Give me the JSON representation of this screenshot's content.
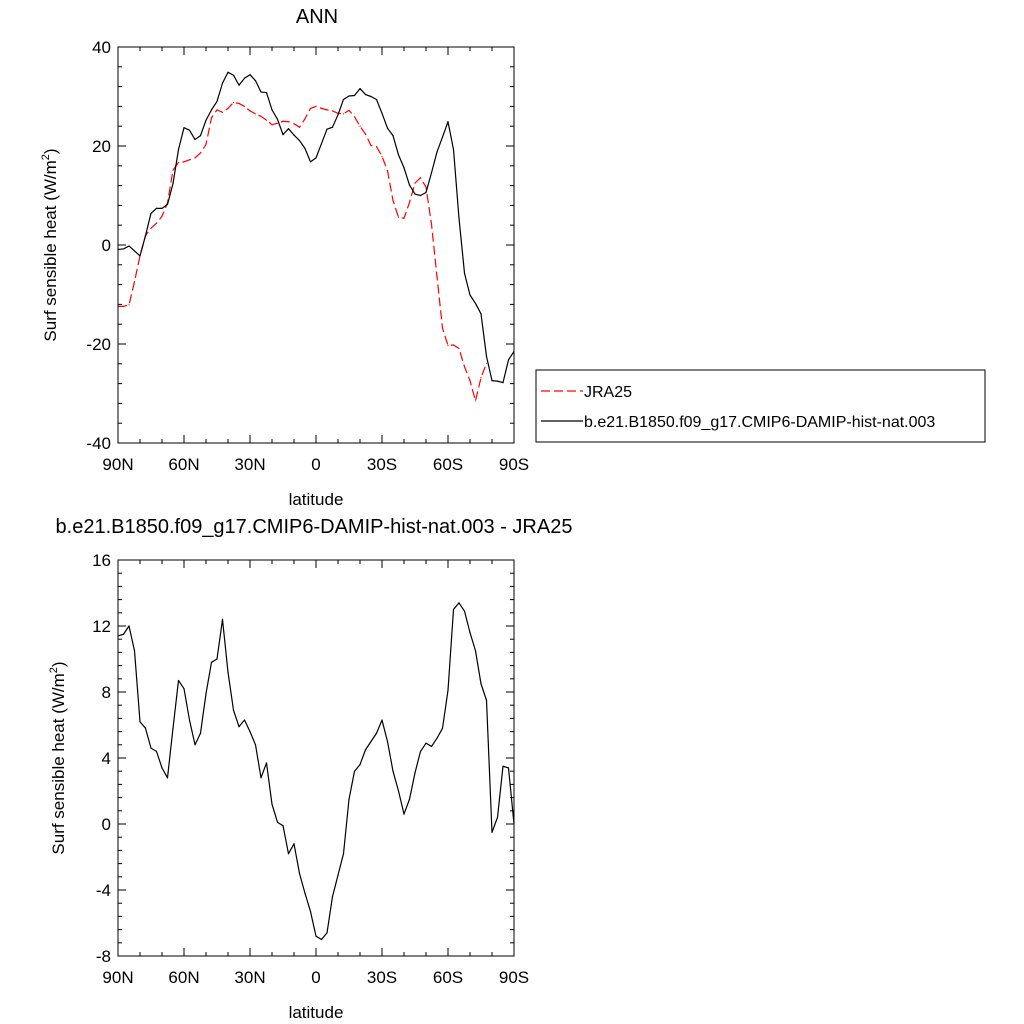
{
  "chart_data": [
    {
      "type": "line",
      "title": "ANN",
      "xlabel": "latitude",
      "ylabel": "Surf sensible heat (W/m",
      "ylabel_sup": "2",
      "ylabel_close": ")",
      "xlim": [
        90,
        -90
      ],
      "ylim": [
        -40,
        40
      ],
      "xticks": [
        {
          "value": 90,
          "label": "90N"
        },
        {
          "value": 60,
          "label": "60N"
        },
        {
          "value": 30,
          "label": "30N"
        },
        {
          "value": 0,
          "label": "0"
        },
        {
          "value": -30,
          "label": "30S"
        },
        {
          "value": -60,
          "label": "60S"
        },
        {
          "value": -90,
          "label": "90S"
        }
      ],
      "yticks": [
        40,
        20,
        0,
        -20,
        -40
      ],
      "legend_position": "right",
      "series": [
        {
          "name": "JRA25",
          "color": "#ff0000",
          "dash": "dashed",
          "points": [
            [
              90,
              -12.4
            ],
            [
              87.5,
              -12.4
            ],
            [
              85,
              -12.1
            ],
            [
              82.5,
              -7.4
            ],
            [
              80,
              -2.2
            ],
            [
              77.5,
              1.9
            ],
            [
              75,
              3.4
            ],
            [
              72.5,
              4.4
            ],
            [
              70,
              5.8
            ],
            [
              67.5,
              8.5
            ],
            [
              65,
              15.1
            ],
            [
              62.5,
              16.7
            ],
            [
              60,
              16.8
            ],
            [
              57.5,
              17.2
            ],
            [
              55,
              17.6
            ],
            [
              52.5,
              18.6
            ],
            [
              50,
              20.3
            ],
            [
              47.5,
              25.7
            ],
            [
              45,
              27.3
            ],
            [
              42.5,
              26.8
            ],
            [
              40,
              27.6
            ],
            [
              37.5,
              28.8
            ],
            [
              35,
              28.6
            ],
            [
              32.5,
              28.0
            ],
            [
              30,
              27.1
            ],
            [
              27.5,
              26.5
            ],
            [
              25,
              26.0
            ],
            [
              22.5,
              25.2
            ],
            [
              20,
              24.3
            ],
            [
              17.5,
              24.6
            ],
            [
              15,
              25.0
            ],
            [
              12.5,
              24.9
            ],
            [
              10,
              24.5
            ],
            [
              7.5,
              23.8
            ],
            [
              5,
              25.5
            ],
            [
              2.5,
              27.6
            ],
            [
              0,
              28.0
            ],
            [
              -2.5,
              27.6
            ],
            [
              -5,
              27.3
            ],
            [
              -7.5,
              27.1
            ],
            [
              -10,
              26.6
            ],
            [
              -12.5,
              26.5
            ],
            [
              -15,
              27.2
            ],
            [
              -17.5,
              25.9
            ],
            [
              -20,
              24.0
            ],
            [
              -22.5,
              22.4
            ],
            [
              -25,
              20.1
            ],
            [
              -27.5,
              19.9
            ],
            [
              -30,
              17.9
            ],
            [
              -32.5,
              15.0
            ],
            [
              -35,
              9.0
            ],
            [
              -37.5,
              5.6
            ],
            [
              -40,
              5.4
            ],
            [
              -42.5,
              8.6
            ],
            [
              -45,
              12.5
            ],
            [
              -47.5,
              13.6
            ],
            [
              -50,
              11.7
            ],
            [
              -52.5,
              4.2
            ],
            [
              -55,
              -6.4
            ],
            [
              -57.5,
              -16.8
            ],
            [
              -60,
              -20.3
            ],
            [
              -62.5,
              -20.2
            ],
            [
              -65,
              -20.9
            ],
            [
              -67.5,
              -24.6
            ],
            [
              -70,
              -27.4
            ],
            [
              -72.5,
              -31.5
            ],
            [
              -75,
              -26.8
            ],
            [
              -77.5,
              -23.9
            ]
          ]
        },
        {
          "name": "b.e21.B1850.f09_g17.CMIP6-DAMIP-hist-nat.003",
          "color": "#000000",
          "dash": "solid",
          "points": [
            [
              90,
              -0.9
            ],
            [
              87.5,
              -0.8
            ],
            [
              85,
              -0.2
            ],
            [
              82.5,
              -1.2
            ],
            [
              80,
              -2.2
            ],
            [
              77.5,
              1.9
            ],
            [
              75,
              6.4
            ],
            [
              72.5,
              7.4
            ],
            [
              70,
              7.4
            ],
            [
              67.5,
              8.2
            ],
            [
              65,
              12.4
            ],
            [
              62.5,
              19.3
            ],
            [
              60,
              23.7
            ],
            [
              57.5,
              23.2
            ],
            [
              55,
              21.3
            ],
            [
              52.5,
              22.1
            ],
            [
              50,
              25.2
            ],
            [
              47.5,
              27.3
            ],
            [
              45,
              29.0
            ],
            [
              42.5,
              32.7
            ],
            [
              40,
              34.9
            ],
            [
              37.5,
              34.3
            ],
            [
              35,
              32.3
            ],
            [
              32.5,
              33.7
            ],
            [
              30,
              34.4
            ],
            [
              27.5,
              33.2
            ],
            [
              25,
              30.9
            ],
            [
              22.5,
              30.8
            ],
            [
              20,
              27.3
            ],
            [
              17.5,
              25.4
            ],
            [
              15,
              22.3
            ],
            [
              12.5,
              23.5
            ],
            [
              10,
              22.2
            ],
            [
              7.5,
              21.1
            ],
            [
              5,
              19.5
            ],
            [
              2.5,
              16.8
            ],
            [
              0,
              17.6
            ],
            [
              -2.5,
              20.5
            ],
            [
              -5,
              23.4
            ],
            [
              -7.5,
              23.8
            ],
            [
              -10,
              26.3
            ],
            [
              -12.5,
              29.4
            ],
            [
              -15,
              30.1
            ],
            [
              -17.5,
              30.2
            ],
            [
              -20,
              31.6
            ],
            [
              -22.5,
              30.4
            ],
            [
              -25,
              30.0
            ],
            [
              -27.5,
              29.4
            ],
            [
              -30,
              26.6
            ],
            [
              -32.5,
              23.6
            ],
            [
              -35,
              22.1
            ],
            [
              -37.5,
              18.2
            ],
            [
              -40,
              15.6
            ],
            [
              -42.5,
              12.1
            ],
            [
              -45,
              10.3
            ],
            [
              -47.5,
              10.0
            ],
            [
              -50,
              10.6
            ],
            [
              -52.5,
              14.6
            ],
            [
              -55,
              18.8
            ],
            [
              -57.5,
              21.8
            ],
            [
              -60,
              24.9
            ],
            [
              -62.5,
              19.3
            ],
            [
              -65,
              5.4
            ],
            [
              -67.5,
              -5.7
            ],
            [
              -70,
              -10.1
            ],
            [
              -72.5,
              -11.8
            ],
            [
              -75,
              -13.9
            ],
            [
              -77.5,
              -22.5
            ],
            [
              -80,
              -27.4
            ],
            [
              -82.5,
              -27.5
            ],
            [
              -85,
              -27.8
            ],
            [
              -87.5,
              -23.2
            ],
            [
              -90,
              -21.5
            ]
          ]
        }
      ]
    },
    {
      "type": "line",
      "title": "b.e21.B1850.f09_g17.CMIP6-DAMIP-hist-nat.003 - JRA25",
      "xlabel": "latitude",
      "ylabel": "Surf sensible heat (W/m",
      "ylabel_sup": "2",
      "ylabel_close": ")",
      "xlim": [
        90,
        -90
      ],
      "ylim": [
        -8,
        16
      ],
      "xticks": [
        {
          "value": 90,
          "label": "90N"
        },
        {
          "value": 60,
          "label": "60N"
        },
        {
          "value": 30,
          "label": "30N"
        },
        {
          "value": 0,
          "label": "0"
        },
        {
          "value": -30,
          "label": "30S"
        },
        {
          "value": -60,
          "label": "60S"
        },
        {
          "value": -90,
          "label": "90S"
        }
      ],
      "yticks": [
        16,
        12,
        8,
        4,
        0,
        -4,
        -8
      ],
      "series": [
        {
          "color": "#000000",
          "dash": "solid",
          "points": [
            [
              90,
              11.4
            ],
            [
              87.5,
              11.5
            ],
            [
              85,
              12.0
            ],
            [
              82.5,
              10.5
            ],
            [
              80,
              6.2
            ],
            [
              77.5,
              5.8
            ],
            [
              75,
              4.6
            ],
            [
              72.5,
              4.4
            ],
            [
              70,
              3.4
            ],
            [
              67.5,
              2.8
            ],
            [
              65,
              5.8
            ],
            [
              62.5,
              8.7
            ],
            [
              60,
              8.2
            ],
            [
              57.5,
              6.3
            ],
            [
              55,
              4.8
            ],
            [
              52.5,
              5.5
            ],
            [
              50,
              7.9
            ],
            [
              47.5,
              9.8
            ],
            [
              45,
              10.0
            ],
            [
              42.5,
              12.4
            ],
            [
              40,
              9.2
            ],
            [
              37.5,
              6.9
            ],
            [
              35,
              5.9
            ],
            [
              32.5,
              6.3
            ],
            [
              30,
              5.6
            ],
            [
              27.5,
              4.8
            ],
            [
              25,
              2.8
            ],
            [
              22.5,
              3.7
            ],
            [
              20,
              1.2
            ],
            [
              17.5,
              0.1
            ],
            [
              15,
              -0.1
            ],
            [
              12.5,
              -1.8
            ],
            [
              10,
              -1.2
            ],
            [
              7.5,
              -3.0
            ],
            [
              5,
              -4.2
            ],
            [
              2.5,
              -5.3
            ],
            [
              0,
              -6.8
            ],
            [
              -2.5,
              -7.0
            ],
            [
              -5,
              -6.6
            ],
            [
              -7.5,
              -4.4
            ],
            [
              -10,
              -3.1
            ],
            [
              -12.5,
              -1.8
            ],
            [
              -15,
              1.5
            ],
            [
              -17.5,
              3.2
            ],
            [
              -20,
              3.6
            ],
            [
              -22.5,
              4.5
            ],
            [
              -25,
              5.0
            ],
            [
              -27.5,
              5.5
            ],
            [
              -30,
              6.3
            ],
            [
              -32.5,
              5.0
            ],
            [
              -35,
              3.2
            ],
            [
              -37.5,
              2.0
            ],
            [
              -40,
              0.6
            ],
            [
              -42.5,
              1.5
            ],
            [
              -45,
              3.1
            ],
            [
              -47.5,
              4.4
            ],
            [
              -50,
              4.9
            ],
            [
              -52.5,
              4.7
            ],
            [
              -55,
              5.2
            ],
            [
              -57.5,
              5.8
            ],
            [
              -60,
              8.1
            ],
            [
              -62.5,
              13.0
            ],
            [
              -65,
              13.4
            ],
            [
              -67.5,
              12.9
            ],
            [
              -70,
              11.6
            ],
            [
              -72.5,
              10.5
            ],
            [
              -75,
              8.5
            ],
            [
              -77.5,
              7.5
            ],
            [
              -80,
              -0.5
            ],
            [
              -82.5,
              0.4
            ],
            [
              -85,
              3.5
            ],
            [
              -87.5,
              3.4
            ],
            [
              -90,
              0.0
            ]
          ]
        }
      ]
    }
  ]
}
